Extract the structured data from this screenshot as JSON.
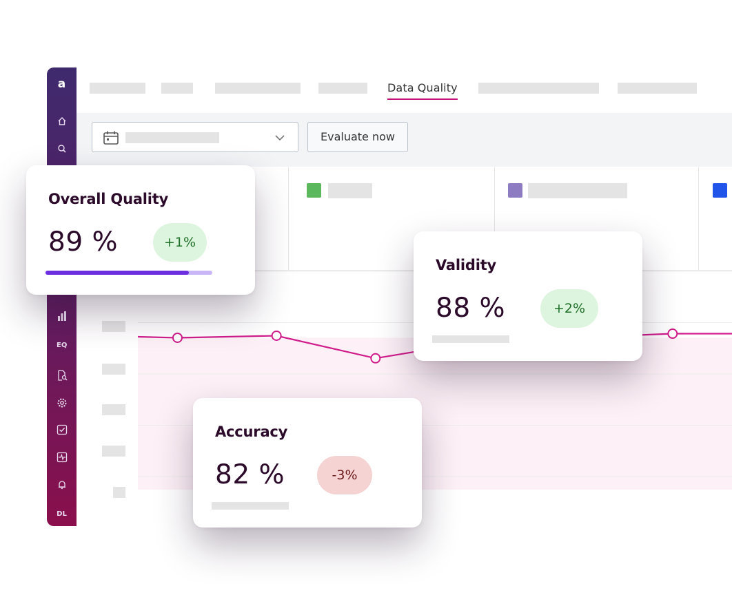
{
  "sidebar": {
    "logo": "a",
    "icons": [
      "home-icon",
      "search-icon",
      "bar-chart-icon",
      "eq-icon",
      "document-search-icon",
      "gear-icon",
      "checkbox-icon",
      "activity-icon",
      "bell-icon"
    ],
    "user_initials": "DL"
  },
  "nav": {
    "active_tab": "Data Quality"
  },
  "toolbar": {
    "evaluate_label": "Evaluate now"
  },
  "legend": {
    "colors": [
      "#5cb85c",
      "#8e7cc3",
      "#2154e8"
    ]
  },
  "chart_data": {
    "type": "line",
    "series_color": "#d01c8b",
    "fill_color": "#fdf0f6",
    "points": [
      {
        "x": 1,
        "y": 74
      },
      {
        "x": 2,
        "y": 75
      },
      {
        "x": 3,
        "y": 64
      },
      {
        "x": 4,
        "y": 72
      },
      {
        "x": 5,
        "y": 74
      },
      {
        "x": 6,
        "y": 76
      }
    ],
    "ylim": [
      0,
      100
    ],
    "grid": true
  },
  "cards": {
    "overall": {
      "title": "Overall Quality",
      "value": "89 %",
      "delta": "+1%",
      "progress": 0.86,
      "accent": "#6b2fe0",
      "track": "#c8b6f6"
    },
    "validity": {
      "title": "Validity",
      "value": "88 %",
      "delta": "+2%"
    },
    "accuracy": {
      "title": "Accuracy",
      "value": "82 %",
      "delta": "-3%"
    }
  }
}
